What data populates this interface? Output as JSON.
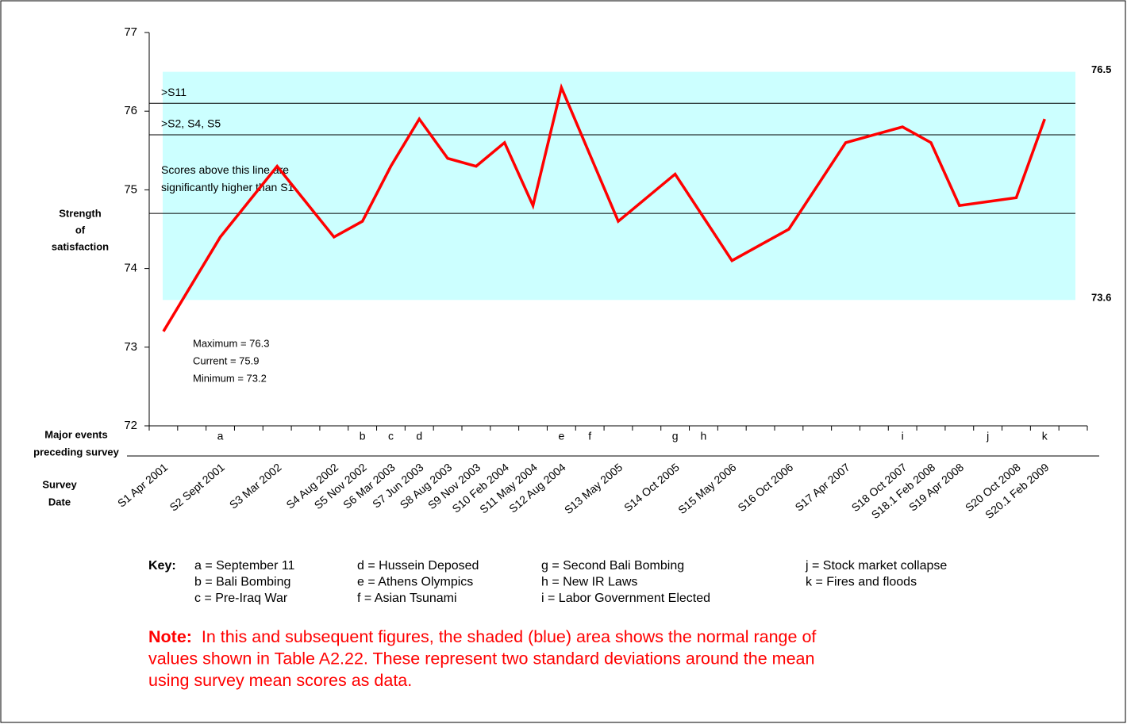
{
  "chart_data": {
    "type": "line",
    "categories": [
      "S1 Apr 2001",
      null,
      "S2 Sept 2001",
      null,
      "S3 Mar 2002",
      null,
      "S4 Aug 2002",
      "S5 Nov 2002",
      "S6 Mar 2003",
      "S7 Jun 2003",
      "S8 Aug 2003",
      "S9 Nov 2003",
      "S10 Feb 2004",
      "S11 May 2004",
      "S12 Aug 2004",
      null,
      "S13 May 2005",
      null,
      "S14 Oct 2005",
      null,
      "S15 May 2006",
      null,
      "S16 Oct 2006",
      null,
      "S17 Apr 2007",
      null,
      "S18 Oct 2007",
      "S18.1 Feb 2008",
      "S19 Apr 2008",
      null,
      "S20 Oct 2008",
      "S20.1 Feb 2009",
      null
    ],
    "events": [
      null,
      null,
      "a",
      null,
      null,
      null,
      null,
      "b",
      "c",
      "d",
      null,
      null,
      null,
      null,
      "e",
      "f",
      null,
      null,
      "g",
      "h",
      null,
      null,
      null,
      null,
      null,
      null,
      "i",
      null,
      null,
      "j",
      null,
      "k",
      null
    ],
    "values": [
      73.2,
      73.8,
      74.4,
      74.85,
      75.3,
      74.85,
      74.4,
      74.6,
      75.3,
      75.9,
      75.4,
      75.3,
      75.6,
      74.8,
      76.3,
      75.45,
      74.6,
      74.9,
      75.2,
      74.65,
      74.1,
      74.3,
      74.5,
      75.05,
      75.6,
      75.7,
      75.8,
      75.6,
      74.8,
      74.85,
      74.9,
      75.9,
      null
    ],
    "color": "#ff0000",
    "band": [
      73.6,
      76.5
    ],
    "band_color": "#ccffff",
    "ylim": [
      72,
      77
    ],
    "yticks": [
      72,
      73,
      74,
      75,
      76,
      77
    ],
    "thresholds": [
      {
        "value": 76.1,
        "label": [
          ">S11"
        ]
      },
      {
        "value": 75.7,
        "label": [
          ">S2, S4, S5"
        ]
      },
      {
        "value": 74.7,
        "label": [
          "Scores above this line are",
          "significantly higher than S1"
        ]
      }
    ],
    "y_label": [
      "Strength",
      "of",
      "satisfaction"
    ],
    "events_label": [
      "Major events",
      "preceding survey"
    ],
    "x_label": [
      "Survey",
      "Date"
    ],
    "stats": [
      "Maximum = 76.3",
      "Current = 75.9",
      "Minimum = 73.2"
    ],
    "key": {
      "title": "Key:",
      "columns": [
        [
          "a = September 11",
          "b = Bali Bombing",
          "c = Pre-Iraq War"
        ],
        [
          "d = Hussein Deposed",
          "e = Athens Olympics",
          "f = Asian Tsunami"
        ],
        [
          "g = Second Bali Bombing",
          "h = New IR Laws",
          "i = Labor Government Elected"
        ],
        [
          "j = Stock market collapse",
          "k = Fires and floods"
        ]
      ]
    },
    "note": {
      "label": "Note:",
      "lines": [
        "In this and subsequent figures, the shaded (blue) area shows the normal range of",
        "values shown in Table A2.22.  These represent two standard deviations around the mean",
        "using survey mean scores as data."
      ]
    }
  }
}
